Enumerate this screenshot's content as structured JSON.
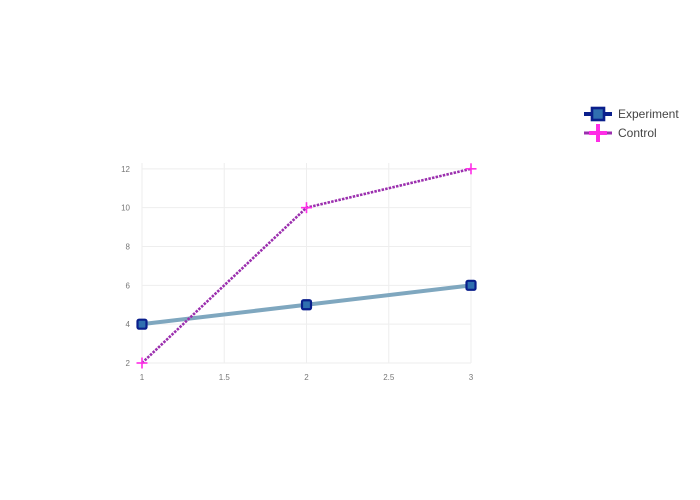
{
  "chart_data": {
    "type": "line",
    "title": "",
    "xlabel": "",
    "ylabel": "",
    "x": [
      1,
      2,
      3
    ],
    "xlim": [
      1,
      3
    ],
    "ylim": [
      2,
      12.3
    ],
    "xticks": [
      1,
      1.5,
      2,
      2.5,
      3
    ],
    "xtick_labels": [
      "1",
      "1.5",
      "2",
      "2.5",
      "3"
    ],
    "yticks": [
      2,
      4,
      6,
      8,
      10,
      12
    ],
    "ytick_labels": [
      "2",
      "4",
      "6",
      "8",
      "10",
      "12"
    ],
    "grid": true,
    "legend_position": "top-right",
    "series": [
      {
        "name": "Experiment",
        "values": [
          4,
          5,
          6
        ],
        "line_color": "#7fa7bf",
        "marker": "square",
        "marker_fill": "#2f6fb0",
        "marker_edge": "#0a1f8c"
      },
      {
        "name": "Control",
        "values": [
          2,
          10,
          12
        ],
        "line_color": "#9b2fae",
        "marker": "cross",
        "marker_fill": "#ff2de6",
        "marker_edge": "#ff2de6"
      }
    ]
  }
}
